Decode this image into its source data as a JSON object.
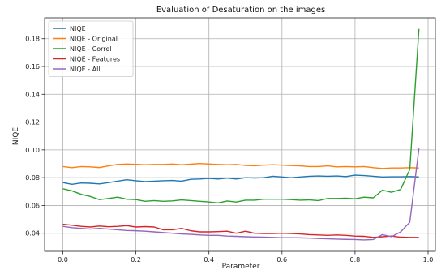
{
  "chart_data": {
    "type": "line",
    "title": "Evaluation of Desaturation on the images",
    "xlabel": "Parameter",
    "ylabel": "NIQE",
    "xlim": [
      -0.05,
      1.02
    ],
    "ylim": [
      0.027,
      0.195
    ],
    "xticks": [
      0.0,
      0.2,
      0.4,
      0.6,
      0.8,
      1.0
    ],
    "xtick_labels": [
      "0.0",
      "0.2",
      "0.4",
      "0.6",
      "0.8",
      "1.0"
    ],
    "yticks": [
      0.04,
      0.06,
      0.08,
      0.1,
      0.12,
      0.14,
      0.16,
      0.18
    ],
    "ytick_labels": [
      "0.04",
      "0.06",
      "0.08",
      "0.10",
      "0.12",
      "0.14",
      "0.16",
      "0.18"
    ],
    "grid": true,
    "legend_position": "top-left",
    "x": [
      0.0,
      0.025,
      0.05,
      0.075,
      0.1,
      0.125,
      0.15,
      0.175,
      0.2,
      0.225,
      0.25,
      0.275,
      0.3,
      0.325,
      0.35,
      0.375,
      0.4,
      0.425,
      0.45,
      0.475,
      0.5,
      0.525,
      0.55,
      0.575,
      0.6,
      0.625,
      0.65,
      0.675,
      0.7,
      0.725,
      0.75,
      0.775,
      0.8,
      0.825,
      0.85,
      0.875,
      0.9,
      0.925,
      0.95,
      0.975
    ],
    "series": [
      {
        "name": "NIQE",
        "color": "#1f77b4",
        "values": [
          0.0765,
          0.0752,
          0.0762,
          0.076,
          0.0755,
          0.0765,
          0.0775,
          0.0785,
          0.0778,
          0.0772,
          0.0775,
          0.0778,
          0.078,
          0.0775,
          0.0788,
          0.079,
          0.0795,
          0.079,
          0.0797,
          0.079,
          0.08,
          0.0798,
          0.08,
          0.081,
          0.0805,
          0.08,
          0.0805,
          0.081,
          0.0812,
          0.081,
          0.0812,
          0.0808,
          0.0818,
          0.0815,
          0.081,
          0.0805,
          0.0806,
          0.0806,
          0.0808,
          0.0805
        ]
      },
      {
        "name": "NIQE - Original",
        "color": "#ff7f0e",
        "values": [
          0.088,
          0.0872,
          0.088,
          0.0878,
          0.0873,
          0.0885,
          0.0895,
          0.0898,
          0.0896,
          0.0893,
          0.0895,
          0.0895,
          0.0898,
          0.0893,
          0.0897,
          0.0902,
          0.0898,
          0.0895,
          0.0893,
          0.0895,
          0.0888,
          0.0886,
          0.089,
          0.0893,
          0.089,
          0.0887,
          0.0885,
          0.088,
          0.088,
          0.0885,
          0.0878,
          0.088,
          0.0878,
          0.088,
          0.0872,
          0.0866,
          0.087,
          0.087,
          0.0872,
          0.087
        ]
      },
      {
        "name": "NIQE - Correl",
        "color": "#2ca02c",
        "values": [
          0.072,
          0.0705,
          0.068,
          0.0665,
          0.0642,
          0.065,
          0.066,
          0.0645,
          0.0642,
          0.063,
          0.0635,
          0.063,
          0.0633,
          0.064,
          0.0635,
          0.063,
          0.0625,
          0.0618,
          0.0632,
          0.0625,
          0.0638,
          0.0638,
          0.0645,
          0.0645,
          0.0645,
          0.0642,
          0.0638,
          0.064,
          0.0635,
          0.065,
          0.065,
          0.0652,
          0.0648,
          0.066,
          0.0655,
          0.071,
          0.0695,
          0.0715,
          0.086,
          0.187
        ]
      },
      {
        "name": "NIQE - Features",
        "color": "#d62728",
        "values": [
          0.0465,
          0.0458,
          0.045,
          0.0445,
          0.0452,
          0.0447,
          0.045,
          0.0455,
          0.0445,
          0.0448,
          0.0445,
          0.0425,
          0.0425,
          0.0435,
          0.0418,
          0.041,
          0.041,
          0.0412,
          0.0415,
          0.04,
          0.0415,
          0.04,
          0.0398,
          0.0398,
          0.04,
          0.0398,
          0.0395,
          0.039,
          0.0388,
          0.0385,
          0.0388,
          0.0385,
          0.038,
          0.0378,
          0.037,
          0.0375,
          0.038,
          0.0372,
          0.037,
          0.037
        ]
      },
      {
        "name": "NIQE - All",
        "color": "#9467bd",
        "values": [
          0.045,
          0.044,
          0.0435,
          0.043,
          0.0435,
          0.043,
          0.0425,
          0.042,
          0.0418,
          0.0415,
          0.041,
          0.0405,
          0.04,
          0.0395,
          0.0392,
          0.0388,
          0.0385,
          0.0385,
          0.038,
          0.0378,
          0.0375,
          0.0373,
          0.0372,
          0.037,
          0.0368,
          0.0368,
          0.0367,
          0.0365,
          0.0362,
          0.036,
          0.0358,
          0.0356,
          0.0355,
          0.0352,
          0.0355,
          0.039,
          0.0375,
          0.041,
          0.048,
          0.101
        ]
      }
    ]
  }
}
